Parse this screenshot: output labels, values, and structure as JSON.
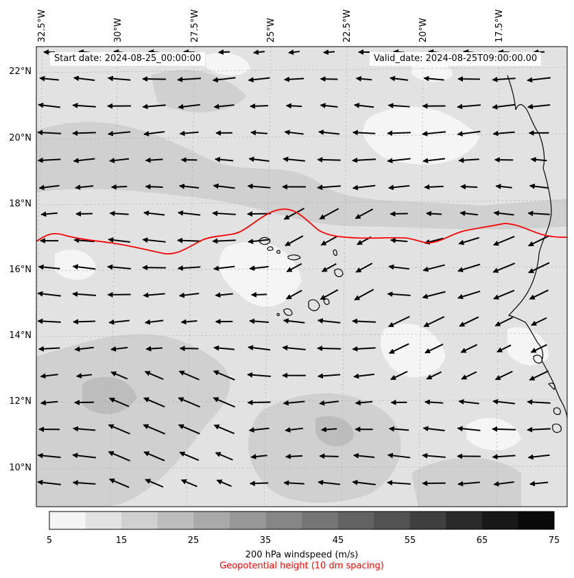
{
  "map": {
    "start_date": "Start date: 2024-08-25_00:00:00",
    "valid_date": "Valid_date: 2024-08-25T09:00:00.00",
    "lon_labels": [
      "32.5°W",
      "30°W",
      "27.5°W",
      "25°W",
      "22.5°W",
      "20°W",
      "17.5°W"
    ],
    "lat_labels": [
      "22°N",
      "20°N",
      "18°N",
      "16°N",
      "14°N",
      "12°N",
      "10°N"
    ],
    "geopotential_color": "#ff0000",
    "coastline_color": "#000000",
    "features": [
      "Cabo Verde islands",
      "West African coastline"
    ]
  },
  "colorbar": {
    "ticks": [
      "5",
      "15",
      "25",
      "35",
      "45",
      "55",
      "65",
      "75"
    ],
    "levels": [
      5,
      10,
      15,
      20,
      25,
      30,
      35,
      40,
      45,
      50,
      55,
      60,
      65,
      70,
      75
    ],
    "colors": [
      "#f5f5f5",
      "#e2e2e2",
      "#d0d0d0",
      "#bdbdbd",
      "#a9a9a9",
      "#989898",
      "#868686",
      "#757575",
      "#636363",
      "#525252",
      "#3f3f3f",
      "#2a2a2a",
      "#181818",
      "#0a0a0a"
    ],
    "label": "200 hPa windspeed (m/s)",
    "sublabel": "Geopotential height (10 dm spacing)",
    "sublabel_color": "#ff0000"
  }
}
